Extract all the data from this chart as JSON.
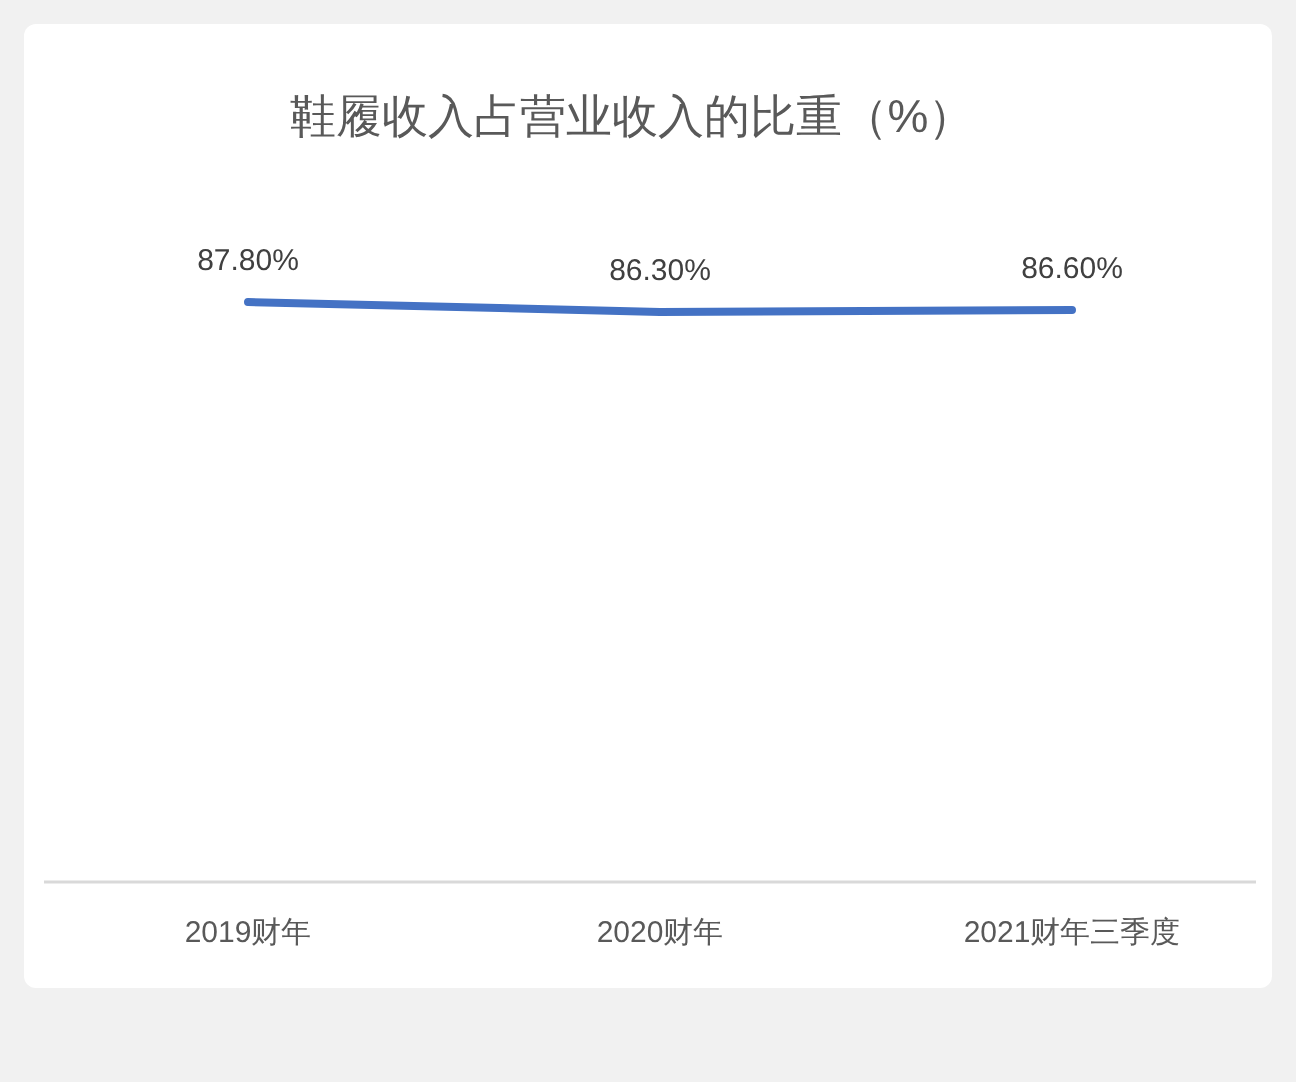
{
  "chart_data": {
    "type": "line",
    "title": "鞋履收入占营业收入的比重（%）",
    "categories": [
      "2019财年",
      "2020财年",
      "2021财年三季度"
    ],
    "values": [
      87.8,
      86.3,
      86.6
    ],
    "value_labels": [
      "87.80%",
      "86.30%",
      "86.60%"
    ],
    "color": "#4472c4"
  }
}
